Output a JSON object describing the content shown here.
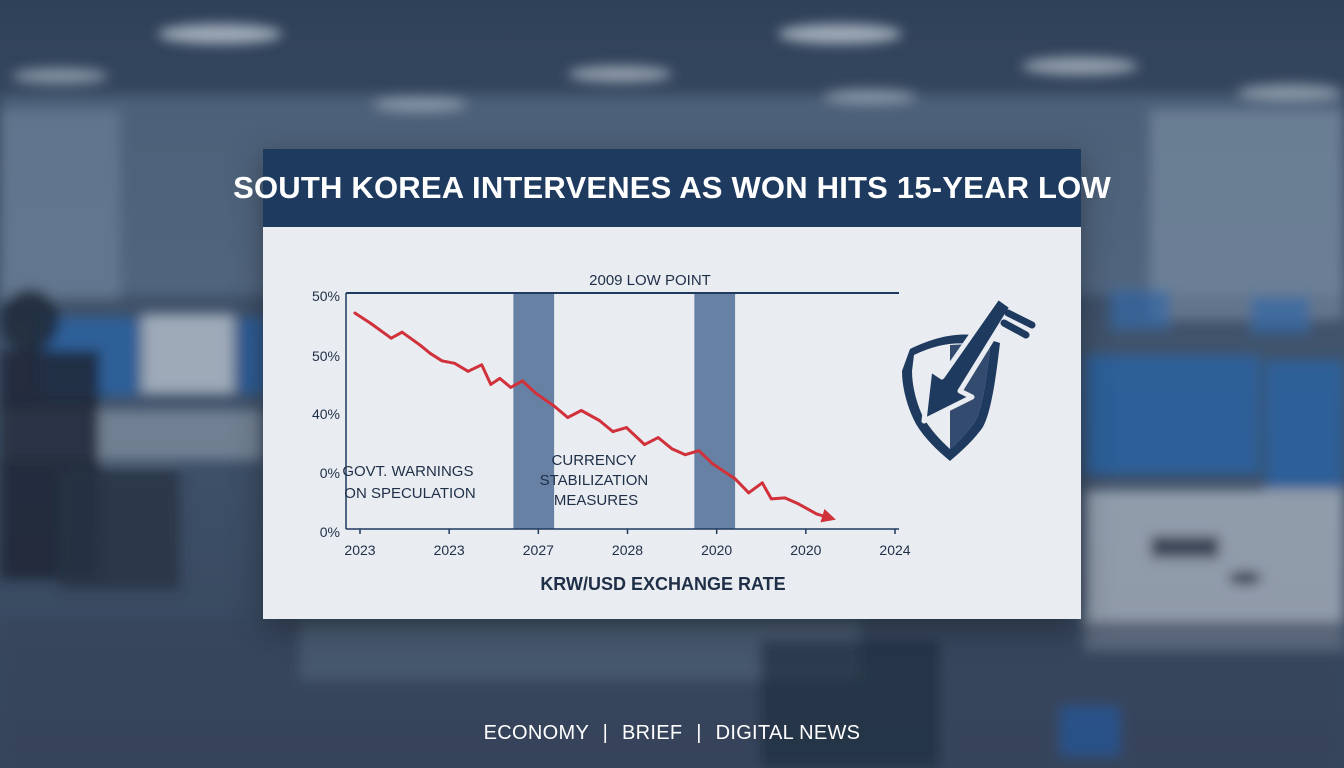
{
  "headline": "SOUTH KOREA INTERVENES AS WON HITS 15-YEAR LOW",
  "footer": {
    "items": [
      "ECONOMY",
      "BRIEF",
      "DIGITAL NEWS"
    ],
    "separator": "|"
  },
  "icon": "shield-downward-arrow-icon",
  "colors": {
    "header": "#1f3a5f",
    "card": "#e9ecf1",
    "line": "#d0313a",
    "band": "#4f6f96",
    "text": "#1f2f47"
  },
  "chart_data": {
    "type": "line",
    "title": "",
    "xlabel": "KRW/USD EXCHANGE RATE",
    "ylabel": "",
    "x_tick_labels": [
      "2023",
      "2023",
      "2027",
      "2028",
      "2020",
      "2020",
      "2024"
    ],
    "y_tick_labels": [
      "50%",
      "50%",
      "40%",
      "0%",
      "0%"
    ],
    "grid": false,
    "annotations": [
      {
        "text": "2009 LOW POINT",
        "kind": "top-line"
      },
      {
        "text": [
          "GOVT. WARNINGS",
          "ON SPECULATION"
        ],
        "kind": "label"
      },
      {
        "text": [
          "CURRENCY",
          "STABILIZATION",
          "MEASURES"
        ],
        "kind": "label"
      }
    ],
    "shaded_bands": [
      {
        "x_from": 1.75,
        "x_to": 2.2
      },
      {
        "x_from": 3.75,
        "x_to": 4.2
      }
    ],
    "series": [
      {
        "color": "#d0313a",
        "x": [
          0.0,
          0.17,
          0.4,
          0.52,
          0.72,
          0.83,
          0.96,
          1.1,
          1.25,
          1.4,
          1.5,
          1.6,
          1.72,
          1.85,
          2.0,
          2.2,
          2.35,
          2.5,
          2.7,
          2.85,
          3.0,
          3.2,
          3.35,
          3.5,
          3.65,
          3.8,
          3.95,
          4.1,
          4.2,
          4.35,
          4.5,
          4.6,
          4.75,
          4.9,
          5.1,
          5.25
        ],
        "y": [
          4.0,
          3.8,
          3.5,
          3.62,
          3.36,
          3.2,
          3.05,
          3.0,
          2.84,
          2.97,
          2.58,
          2.7,
          2.52,
          2.65,
          2.4,
          2.15,
          1.92,
          2.06,
          1.86,
          1.64,
          1.72,
          1.38,
          1.52,
          1.3,
          1.18,
          1.26,
          1.0,
          0.82,
          0.7,
          0.42,
          0.62,
          0.3,
          0.32,
          0.2,
          0.0,
          -0.08
        ]
      }
    ]
  }
}
